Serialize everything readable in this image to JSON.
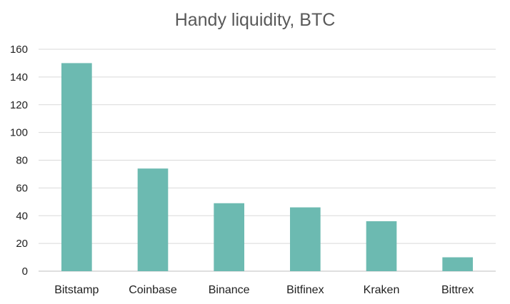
{
  "chart_data": {
    "type": "bar",
    "title": "Handy liquidity, BTC",
    "xlabel": "",
    "ylabel": "",
    "categories": [
      "Bitstamp",
      "Coinbase",
      "Binance",
      "Bitfinex",
      "Kraken",
      "Bittrex"
    ],
    "values": [
      150,
      74,
      49,
      46,
      36,
      10
    ],
    "ylim": [
      0,
      160
    ],
    "yticks": [
      0,
      20,
      40,
      60,
      80,
      100,
      120,
      140,
      160
    ],
    "grid": true,
    "legend": "none",
    "bar_color": "#6cbab1"
  }
}
